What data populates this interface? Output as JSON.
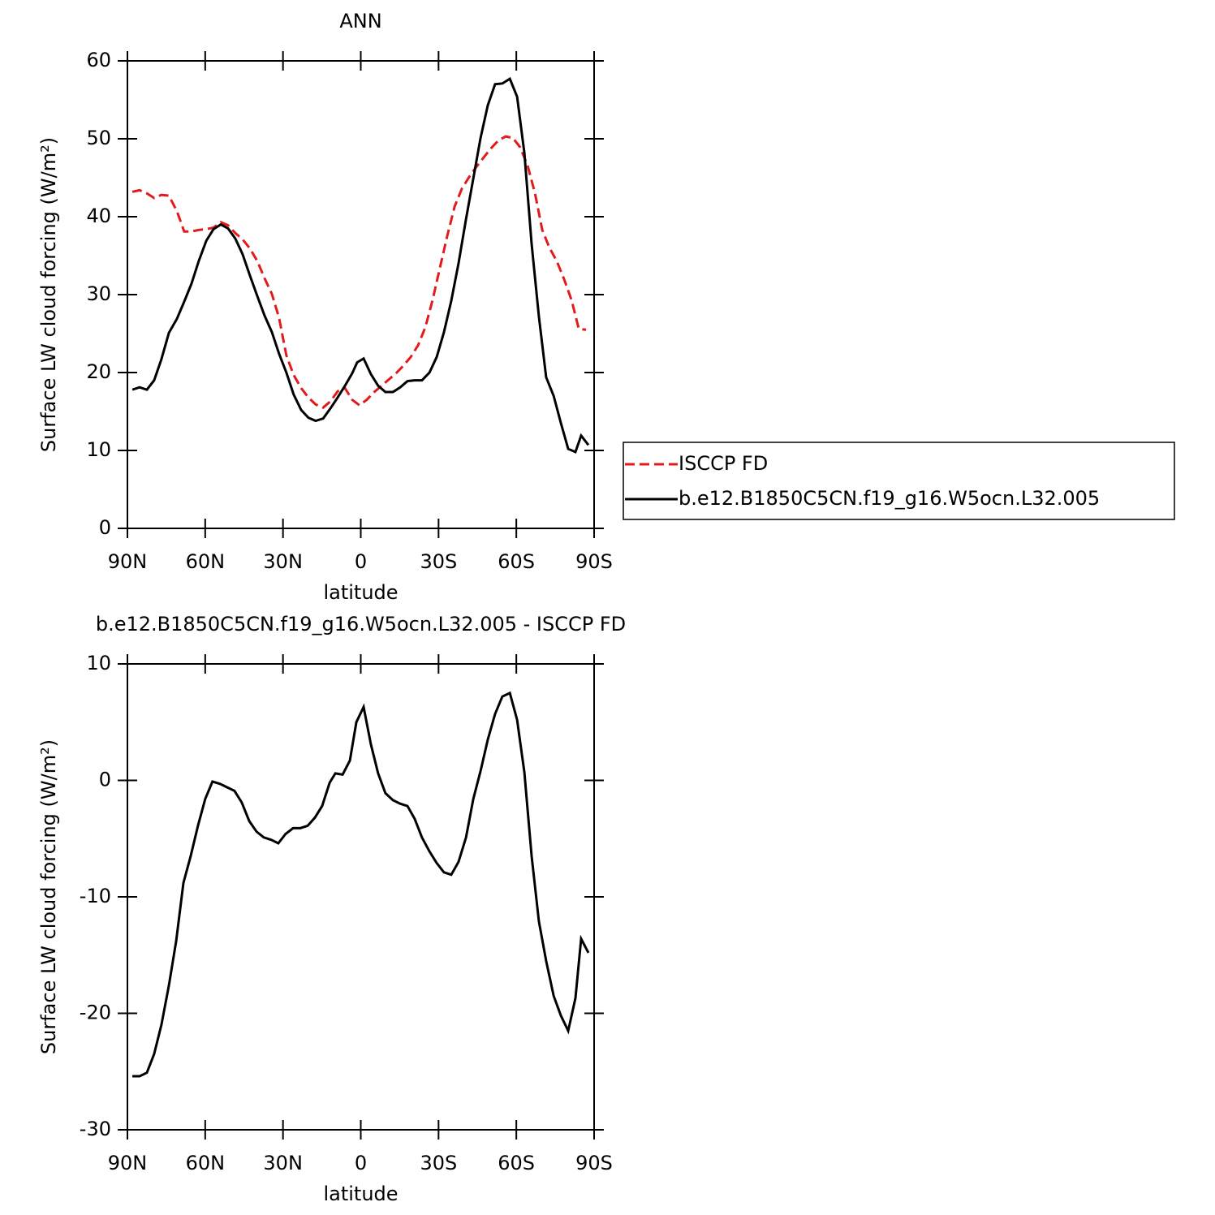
{
  "chart_data": [
    {
      "type": "line",
      "title": "ANN",
      "xlabel": "latitude",
      "ylabel": "Surface LW cloud forcing (W/m²)",
      "xlim": [
        90,
        -90
      ],
      "xticks": [
        {
          "value": 90,
          "label": "90N"
        },
        {
          "value": 60,
          "label": "60N"
        },
        {
          "value": 30,
          "label": "30N"
        },
        0,
        {
          "value": -30,
          "label": "30S"
        },
        {
          "value": -60,
          "label": "60S"
        },
        {
          "value": -90,
          "label": "90S"
        }
      ],
      "ylim": [
        0,
        60
      ],
      "yticks": [
        0,
        10,
        20,
        30,
        40,
        50,
        60
      ],
      "legend": "right",
      "series": [
        {
          "name": "ISCCP FD",
          "color": "#e31a1c",
          "dash": true,
          "x": [
            88.1,
            85.3,
            82.5,
            79.7,
            76.9,
            74.0,
            70.9,
            68.1,
            65.3,
            62.5,
            59.6,
            56.8,
            54.0,
            51.2,
            48.4,
            45.6,
            42.7,
            39.9,
            37.1,
            34.3,
            31.5,
            28.7,
            25.9,
            23.0,
            20.2,
            17.4,
            14.5,
            11.7,
            8.9,
            6.1,
            3.3,
            0.5,
            -2.3,
            -5.2,
            -8.0,
            -10.8,
            -13.6,
            -16.5,
            -19.3,
            -22.1,
            -24.9,
            -27.7,
            -30.5,
            -33.4,
            -36.2,
            -39.0,
            -41.8,
            -44.6,
            -47.4,
            -50.3,
            -53.1,
            -55.9,
            -58.7,
            -61.5,
            -64.4,
            -67.2,
            -70.0,
            -72.8,
            -75.6,
            -78.4,
            -81.3,
            -84.1,
            -86.9
          ],
          "values": [
            43.2,
            43.4,
            43.0,
            42.4,
            42.8,
            42.7,
            40.7,
            38.1,
            38.1,
            38.3,
            38.4,
            38.6,
            39.3,
            38.9,
            37.9,
            37.1,
            35.9,
            34.3,
            32.1,
            30.1,
            27.0,
            22.2,
            19.7,
            18.0,
            16.8,
            15.9,
            15.5,
            16.3,
            17.6,
            18.0,
            16.5,
            15.8,
            16.5,
            17.5,
            18.3,
            19.1,
            19.9,
            20.9,
            22.0,
            23.5,
            25.8,
            29.3,
            33.4,
            37.6,
            41.3,
            43.6,
            45.1,
            46.4,
            47.6,
            48.8,
            49.8,
            50.3,
            50.1,
            48.9,
            46.5,
            43.0,
            38.3,
            36.0,
            34.3,
            32.0,
            29.3,
            25.6,
            25.5
          ]
        },
        {
          "name": "b.e12.B1850C5CN.f19_g16.W5ocn.L32.005",
          "color": "#000000",
          "dash": false,
          "x": [
            88.1,
            85.3,
            82.5,
            79.7,
            76.9,
            74.0,
            70.9,
            68.1,
            65.3,
            62.5,
            59.6,
            56.8,
            54.0,
            51.2,
            48.4,
            45.6,
            42.7,
            39.9,
            37.1,
            34.3,
            31.5,
            28.7,
            25.9,
            23.0,
            20.2,
            17.4,
            14.5,
            11.7,
            8.9,
            6.1,
            3.3,
            1.4,
            -1.1,
            -3.9,
            -6.7,
            -9.5,
            -12.4,
            -15.2,
            -18.0,
            -20.8,
            -23.6,
            -26.5,
            -29.3,
            -32.1,
            -34.9,
            -37.7,
            -40.6,
            -43.4,
            -46.2,
            -49.0,
            -51.8,
            -54.6,
            -57.5,
            -60.3,
            -63.1,
            -65.9,
            -68.7,
            -71.5,
            -74.4,
            -77.2,
            -80.0,
            -82.8,
            -85.0,
            -87.8
          ],
          "values": [
            17.8,
            18.1,
            17.8,
            19.0,
            21.7,
            25.1,
            26.9,
            29.1,
            31.4,
            34.3,
            36.9,
            38.4,
            39.0,
            38.5,
            37.2,
            35.2,
            32.4,
            29.8,
            27.3,
            25.2,
            22.4,
            20.0,
            17.2,
            15.2,
            14.2,
            13.8,
            14.1,
            15.4,
            16.8,
            18.3,
            19.9,
            21.3,
            21.8,
            19.8,
            18.3,
            17.5,
            17.5,
            18.1,
            18.9,
            19.0,
            19.0,
            20.0,
            22.0,
            25.2,
            29.2,
            34.0,
            39.7,
            44.9,
            50.1,
            54.3,
            57.0,
            57.1,
            57.7,
            55.4,
            48.2,
            36.5,
            27.2,
            19.4,
            17.0,
            13.5,
            10.2,
            9.8,
            11.9,
            10.7
          ]
        }
      ]
    },
    {
      "type": "line",
      "title": "b.e12.B1850C5CN.f19_g16.W5ocn.L32.005 - ISCCP FD",
      "xlabel": "latitude",
      "ylabel": "Surface LW cloud forcing (W/m²)",
      "xlim": [
        90,
        -90
      ],
      "xticks": [
        {
          "value": 90,
          "label": "90N"
        },
        {
          "value": 60,
          "label": "60N"
        },
        {
          "value": 30,
          "label": "30N"
        },
        0,
        {
          "value": -30,
          "label": "30S"
        },
        {
          "value": -60,
          "label": "60S"
        },
        {
          "value": -90,
          "label": "90S"
        }
      ],
      "ylim": [
        -30,
        10
      ],
      "yticks": [
        -30,
        -20,
        -10,
        0,
        10
      ],
      "color": "#000000",
      "x": [
        88.1,
        85.3,
        82.5,
        79.7,
        76.9,
        74.0,
        71.2,
        68.4,
        65.6,
        62.8,
        60.0,
        57.2,
        54.3,
        51.5,
        48.7,
        45.9,
        43.0,
        40.2,
        37.4,
        34.6,
        31.8,
        29.0,
        26.1,
        23.3,
        20.5,
        17.7,
        14.9,
        12.0,
        9.8,
        7.0,
        4.2,
        1.7,
        -1.1,
        -3.9,
        -6.7,
        -9.5,
        -12.4,
        -15.2,
        -18.0,
        -20.8,
        -23.6,
        -26.5,
        -29.3,
        -32.1,
        -34.9,
        -37.7,
        -40.6,
        -43.4,
        -46.2,
        -49.0,
        -51.8,
        -54.6,
        -57.5,
        -60.3,
        -63.1,
        -65.9,
        -68.7,
        -71.5,
        -74.4,
        -77.2,
        -80.0,
        -82.8,
        -85.0,
        -87.8
      ],
      "values": [
        -25.4,
        -25.4,
        -25.1,
        -23.5,
        -21.0,
        -17.6,
        -13.8,
        -8.8,
        -6.5,
        -3.9,
        -1.6,
        -0.1,
        -0.3,
        -0.6,
        -0.9,
        -1.9,
        -3.5,
        -4.4,
        -4.9,
        -5.1,
        -5.4,
        -4.6,
        -4.1,
        -4.1,
        -3.9,
        -3.2,
        -2.2,
        -0.2,
        0.6,
        0.5,
        1.7,
        5.0,
        6.3,
        3.1,
        0.6,
        -1.1,
        -1.7,
        -2.0,
        -2.2,
        -3.3,
        -4.9,
        -6.1,
        -7.1,
        -7.9,
        -8.1,
        -7.0,
        -4.9,
        -1.6,
        0.8,
        3.5,
        5.7,
        7.2,
        7.5,
        5.2,
        0.7,
        -6.5,
        -12.1,
        -15.5,
        -18.5,
        -20.2,
        -21.5,
        -18.7,
        -13.6,
        -14.8
      ]
    }
  ]
}
